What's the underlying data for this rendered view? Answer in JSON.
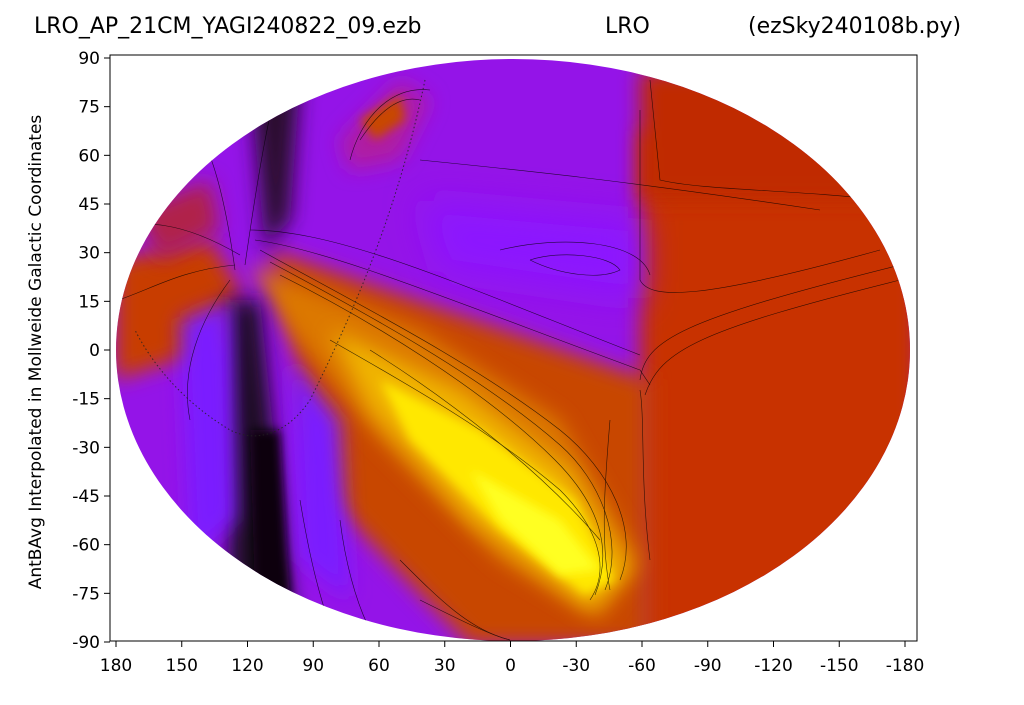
{
  "header": {
    "left": "LRO_AP_21CM_YAGI240822_09.ezb",
    "center": "LRO",
    "right": "(ezSky240108b.py)"
  },
  "chart_data": {
    "type": "heatmap",
    "projection": "mollweide",
    "colormap": "gnuplot",
    "ylabel": "AntBAvg Interpolated in Mollweide Galactic Coordinates",
    "xlabel": "",
    "x_ticks": [
      "180",
      "150",
      "120",
      "90",
      "60",
      "30",
      "0",
      "-30",
      "-60",
      "-90",
      "-120",
      "-150",
      "-180"
    ],
    "y_ticks": [
      "90",
      "75",
      "60",
      "45",
      "30",
      "15",
      "0",
      "-15",
      "-30",
      "-45",
      "-60",
      "-75",
      "-90"
    ],
    "xlim": [
      180,
      -180
    ],
    "ylim": [
      -90,
      90
    ],
    "features": [
      {
        "name": "galactic-plane-band",
        "description": "bright yellow ridge from lon 110 lat 25 to lon -45 lat -70"
      },
      {
        "name": "dark-column",
        "description": "near-black region around lon 115 from lat -90 to lat 80"
      },
      {
        "name": "orange-region",
        "description": "orange-red plateau at lon -60 to -180"
      },
      {
        "name": "purple-background",
        "description": "violet-purple region upper middle"
      }
    ],
    "colors": {
      "yellow": "#ffff00",
      "orange": "#dc7800",
      "red-orange": "#c83200",
      "magenta": "#b01aa0",
      "purple": "#9a14ee",
      "violet": "#7a1aff",
      "dark": "#1e0a22",
      "black": "#0a0008"
    }
  }
}
